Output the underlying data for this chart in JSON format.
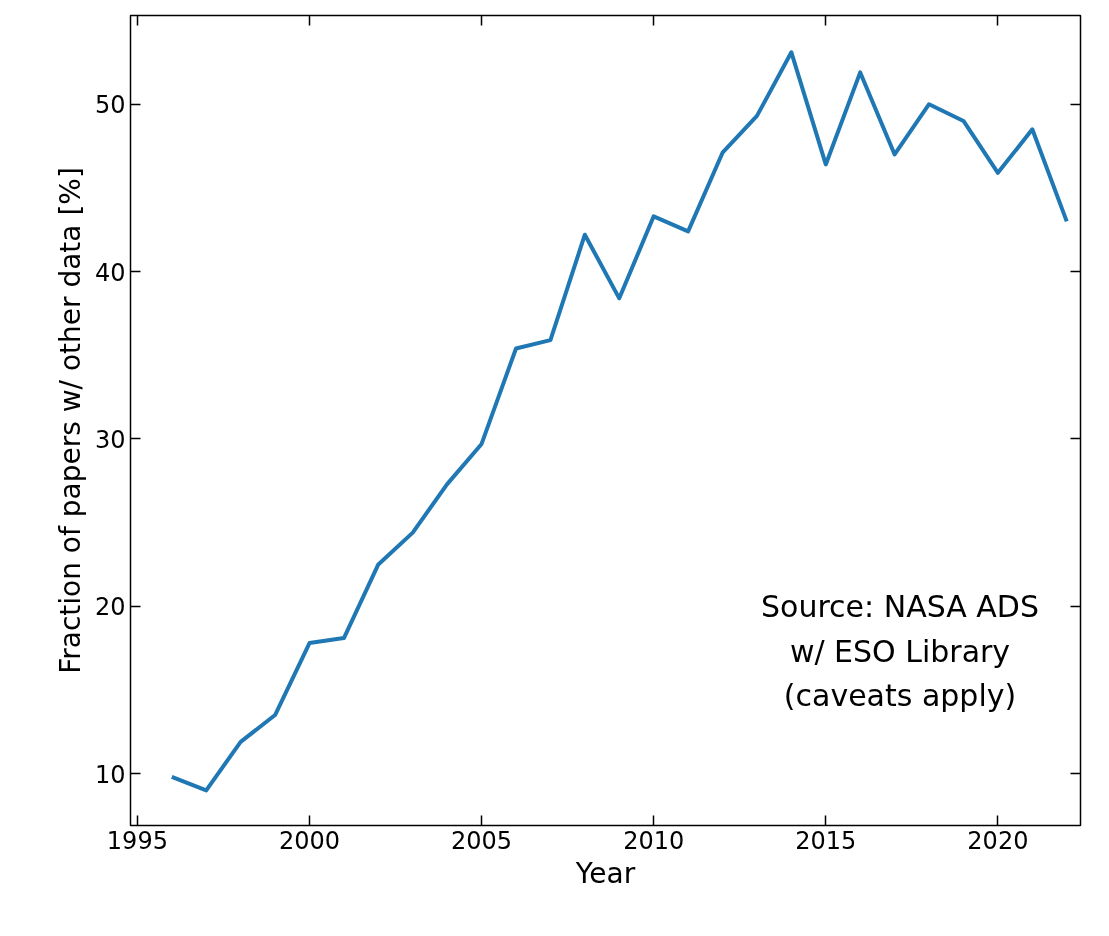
{
  "chart_data": {
    "type": "line",
    "xlabel": "Year",
    "ylabel": "Fraction of papers w/ other data [%]",
    "x": [
      1996,
      1997,
      1998,
      1999,
      2000,
      2001,
      2002,
      2003,
      2004,
      2005,
      2006,
      2007,
      2008,
      2009,
      2010,
      2011,
      2012,
      2013,
      2014,
      2015,
      2016,
      2017,
      2018,
      2019,
      2020,
      2021,
      2022
    ],
    "series": [
      {
        "color": "#1f77b4",
        "values": [
          9.8,
          9.0,
          11.9,
          13.5,
          17.8,
          18.1,
          22.5,
          24.4,
          27.3,
          29.7,
          35.4,
          35.9,
          42.2,
          38.4,
          43.3,
          42.4,
          47.1,
          49.3,
          53.1,
          46.4,
          51.9,
          47.0,
          50.0,
          49.0,
          45.9,
          48.5,
          43.0
        ]
      }
    ],
    "xlim": [
      1994.8,
      2022.4
    ],
    "ylim": [
      6.9,
      55.3
    ],
    "xticks": [
      1995,
      2000,
      2005,
      2010,
      2015,
      2020
    ],
    "yticks": [
      10,
      20,
      30,
      40,
      50
    ],
    "grid": false,
    "marker": "none",
    "line_style": "solid",
    "annotations": [
      {
        "text": "Source: NASA ADS\nw/ ESO Library\n(caveats apply)"
      }
    ]
  }
}
